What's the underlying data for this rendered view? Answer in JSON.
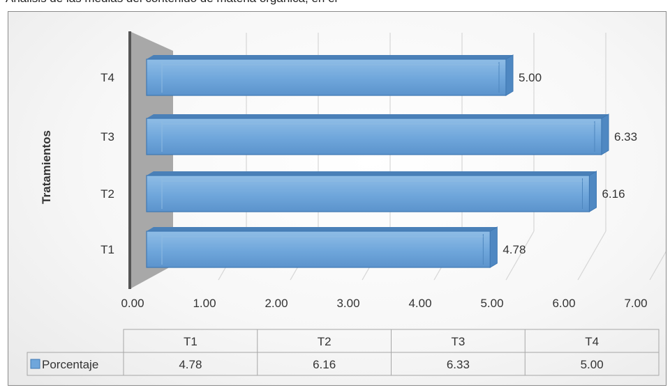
{
  "caption_fragment": "Análisis de las medias del contenido de materia orgánica, en el",
  "chart_data": {
    "type": "bar",
    "orientation": "horizontal",
    "style": "3d",
    "categories": [
      "T1",
      "T2",
      "T3",
      "T4"
    ],
    "series": [
      {
        "name": "Porcentaje",
        "values": [
          4.78,
          6.16,
          6.33,
          5.0
        ],
        "color": "#5b9bd5"
      }
    ],
    "data_labels": [
      "4.78",
      "6.16",
      "6.33",
      "5.00"
    ],
    "ylabel": "Tratamientos",
    "xlim": [
      0,
      7
    ],
    "x_ticks": [
      "0.00",
      "1.00",
      "2.00",
      "3.00",
      "4.00",
      "5.00",
      "6.00",
      "7.00"
    ],
    "grid": true,
    "data_table": {
      "headers": [
        "T1",
        "T2",
        "T3",
        "T4"
      ],
      "rows": [
        {
          "legend": "Porcentaje",
          "values": [
            "4.78",
            "6.16",
            "6.33",
            "5.00"
          ]
        }
      ]
    }
  }
}
